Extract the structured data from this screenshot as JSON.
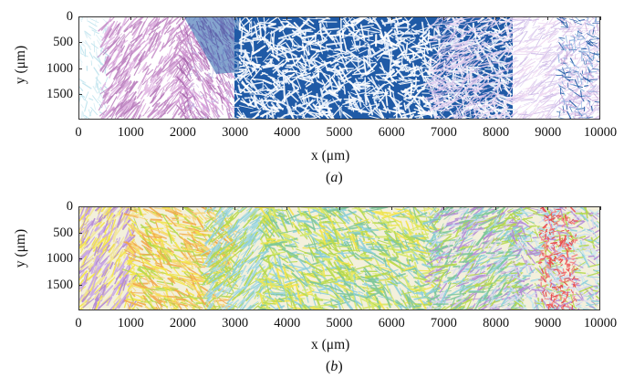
{
  "panels": [
    {
      "id": "a",
      "caption": "a",
      "xlabel": "x (μm)",
      "ylabel": "y (μm)",
      "xticks": [
        "0",
        "1000",
        "2000",
        "3000",
        "4000",
        "5000",
        "6000",
        "7000",
        "8000",
        "9000",
        "10000"
      ],
      "yticks": [
        "0",
        "500",
        "1000",
        "1500"
      ],
      "xlim": [
        0,
        10000
      ],
      "ylim": [
        0,
        2000
      ],
      "palette": [
        "#c78fc9",
        "#e1b7e3",
        "#1f5aa6",
        "#f0d9f2",
        "#bfe4ee",
        "#8fb3e0"
      ]
    },
    {
      "id": "b",
      "caption": "b",
      "xlabel": "x (μm)",
      "ylabel": "y (μm)",
      "xticks": [
        "0",
        "1000",
        "2000",
        "3000",
        "4000",
        "5000",
        "6000",
        "7000",
        "8000",
        "9000",
        "10000"
      ],
      "yticks": [
        "0",
        "500",
        "1000",
        "1500"
      ],
      "xlim": [
        0,
        10000
      ],
      "ylim": [
        0,
        2000
      ],
      "palette": [
        "#f4e44a",
        "#b6d94c",
        "#8ed0dc",
        "#b48ad6",
        "#f2a94c",
        "#ef5a5a",
        "#7dc79a",
        "#d7d7f0"
      ]
    }
  ],
  "chart_data": [
    {
      "type": "heatmap",
      "title": "",
      "xlabel": "x (μm)",
      "ylabel": "y (μm)",
      "xlim": [
        0,
        10000
      ],
      "ylim": [
        0,
        2000
      ],
      "x_ticks": [
        0,
        1000,
        2000,
        3000,
        4000,
        5000,
        6000,
        7000,
        8000,
        9000,
        10000
      ],
      "y_ticks": [
        0,
        500,
        1000,
        1500
      ],
      "y_inverted": true,
      "caption": "(a)"
    },
    {
      "type": "heatmap",
      "title": "",
      "xlabel": "x (μm)",
      "ylabel": "y (μm)",
      "xlim": [
        0,
        10000
      ],
      "ylim": [
        0,
        2000
      ],
      "x_ticks": [
        0,
        1000,
        2000,
        3000,
        4000,
        5000,
        6000,
        7000,
        8000,
        9000,
        10000
      ],
      "y_ticks": [
        0,
        500,
        1000,
        1500
      ],
      "y_inverted": true,
      "caption": "(b)"
    }
  ]
}
